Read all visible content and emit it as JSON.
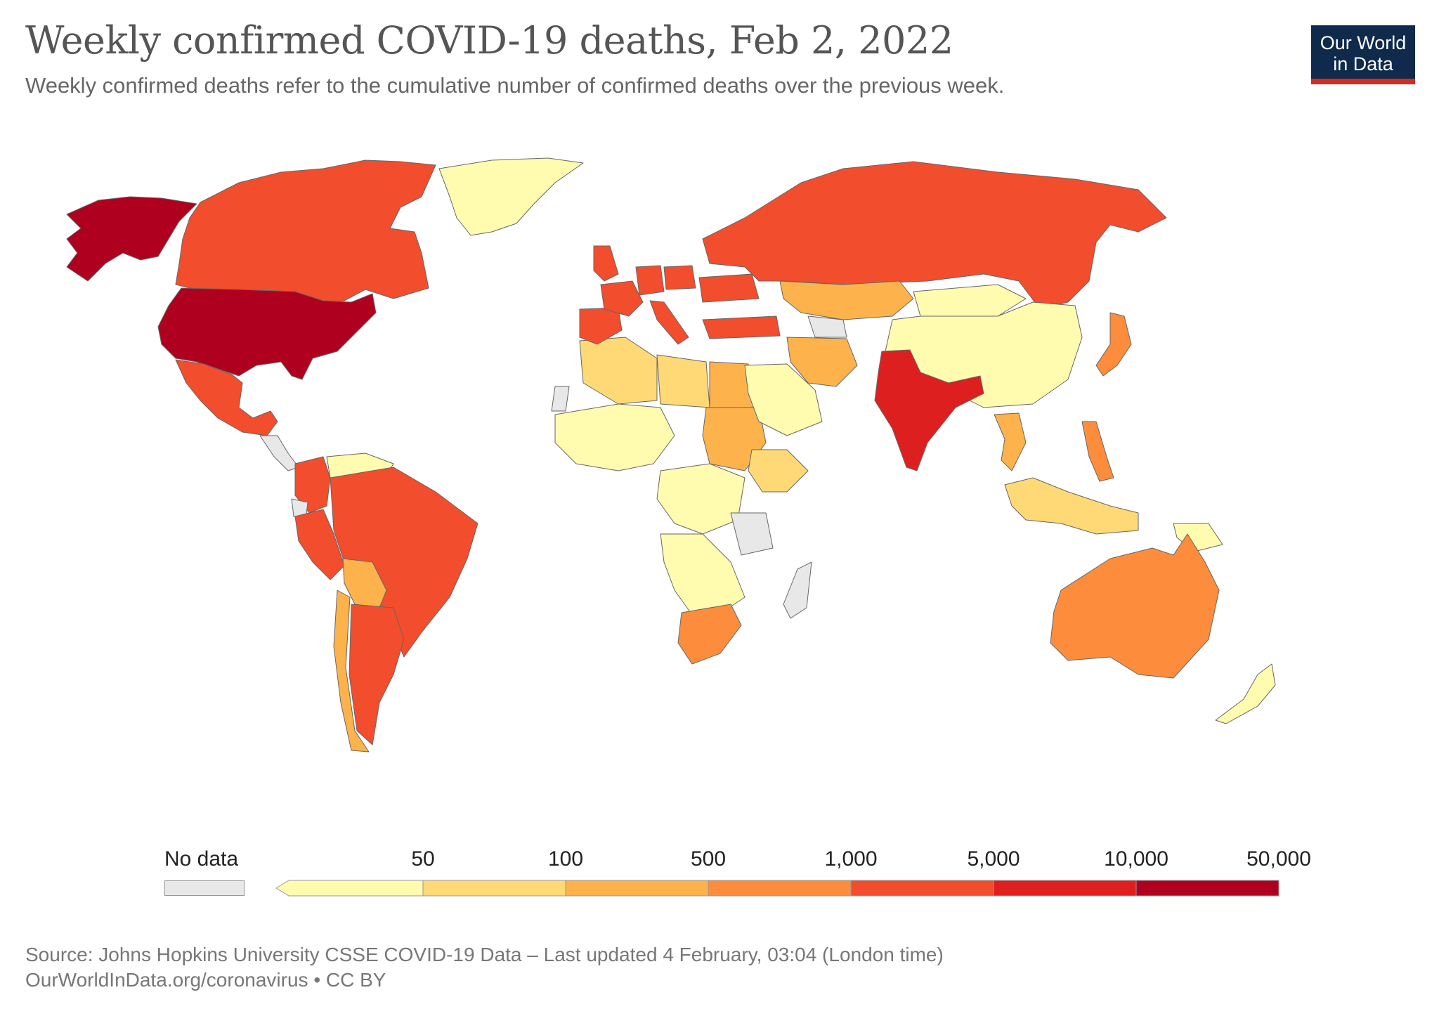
{
  "title": "Weekly confirmed COVID-19 deaths, Feb 2, 2022",
  "subtitle": "Weekly confirmed deaths refer to the cumulative number of confirmed deaths over the previous week.",
  "logo": {
    "line1": "Our World",
    "line2": "in Data"
  },
  "legend": {
    "no_data_label": "No data",
    "no_data_color": "#e8e8e8",
    "ticks": [
      "50",
      "100",
      "500",
      "1,000",
      "5,000",
      "10,000",
      "50,000"
    ],
    "bins": [
      {
        "max": 50,
        "color": "#fffcb0"
      },
      {
        "max": 100,
        "color": "#fed976"
      },
      {
        "max": 500,
        "color": "#feb24c"
      },
      {
        "max": 1000,
        "color": "#fd8d3c"
      },
      {
        "max": 5000,
        "color": "#f24d2d"
      },
      {
        "max": 10000,
        "color": "#de1f20"
      },
      {
        "max": 50000,
        "color": "#b0001f"
      }
    ]
  },
  "map_data": {
    "type": "choropleth",
    "regions": [
      {
        "name": "United States",
        "bin": 7
      },
      {
        "name": "Alaska",
        "bin": 7
      },
      {
        "name": "India",
        "bin": 6
      },
      {
        "name": "Canada",
        "bin": 5
      },
      {
        "name": "Russia",
        "bin": 5
      },
      {
        "name": "Brazil",
        "bin": 5
      },
      {
        "name": "Mexico",
        "bin": 5
      },
      {
        "name": "Argentina",
        "bin": 5
      },
      {
        "name": "Peru",
        "bin": 5
      },
      {
        "name": "Colombia",
        "bin": 5
      },
      {
        "name": "Turkey",
        "bin": 5
      },
      {
        "name": "United Kingdom",
        "bin": 5
      },
      {
        "name": "France",
        "bin": 5
      },
      {
        "name": "Spain",
        "bin": 5
      },
      {
        "name": "Italy",
        "bin": 5
      },
      {
        "name": "Germany",
        "bin": 5
      },
      {
        "name": "Poland",
        "bin": 5
      },
      {
        "name": "Ukraine",
        "bin": 5
      },
      {
        "name": "Australia",
        "bin": 4
      },
      {
        "name": "South Africa",
        "bin": 4
      },
      {
        "name": "Philippines",
        "bin": 4
      },
      {
        "name": "Japan",
        "bin": 4
      },
      {
        "name": "Kazakhstan",
        "bin": 3
      },
      {
        "name": "Iran",
        "bin": 3
      },
      {
        "name": "Egypt",
        "bin": 3
      },
      {
        "name": "Sudan",
        "bin": 3
      },
      {
        "name": "Bolivia",
        "bin": 3
      },
      {
        "name": "Chile",
        "bin": 3
      },
      {
        "name": "Thailand",
        "bin": 3
      },
      {
        "name": "Algeria",
        "bin": 2
      },
      {
        "name": "Libya",
        "bin": 2
      },
      {
        "name": "Ethiopia",
        "bin": 2
      },
      {
        "name": "Indonesia",
        "bin": 2
      },
      {
        "name": "Greenland",
        "bin": 1
      },
      {
        "name": "China",
        "bin": 1
      },
      {
        "name": "Mongolia",
        "bin": 1
      },
      {
        "name": "Saudi Arabia",
        "bin": 1
      },
      {
        "name": "Venezuela",
        "bin": 1
      },
      {
        "name": "Nigeria",
        "bin": 1
      },
      {
        "name": "DR Congo",
        "bin": 1
      },
      {
        "name": "Angola",
        "bin": 1
      },
      {
        "name": "New Zealand",
        "bin": 1
      },
      {
        "name": "Papua New Guinea",
        "bin": 1
      },
      {
        "name": "Tanzania",
        "bin": 0
      },
      {
        "name": "Madagascar",
        "bin": 0
      },
      {
        "name": "Western Sahara",
        "bin": 0
      },
      {
        "name": "Turkmenistan",
        "bin": 0
      },
      {
        "name": "French Guiana",
        "bin": 0
      },
      {
        "name": "Ecuador region",
        "bin": 0
      }
    ]
  },
  "footer": {
    "source": "Source: Johns Hopkins University CSSE COVID-19 Data – Last updated 4 February, 03:04 (London time)",
    "link": "OurWorldInData.org/coronavirus • CC BY"
  }
}
